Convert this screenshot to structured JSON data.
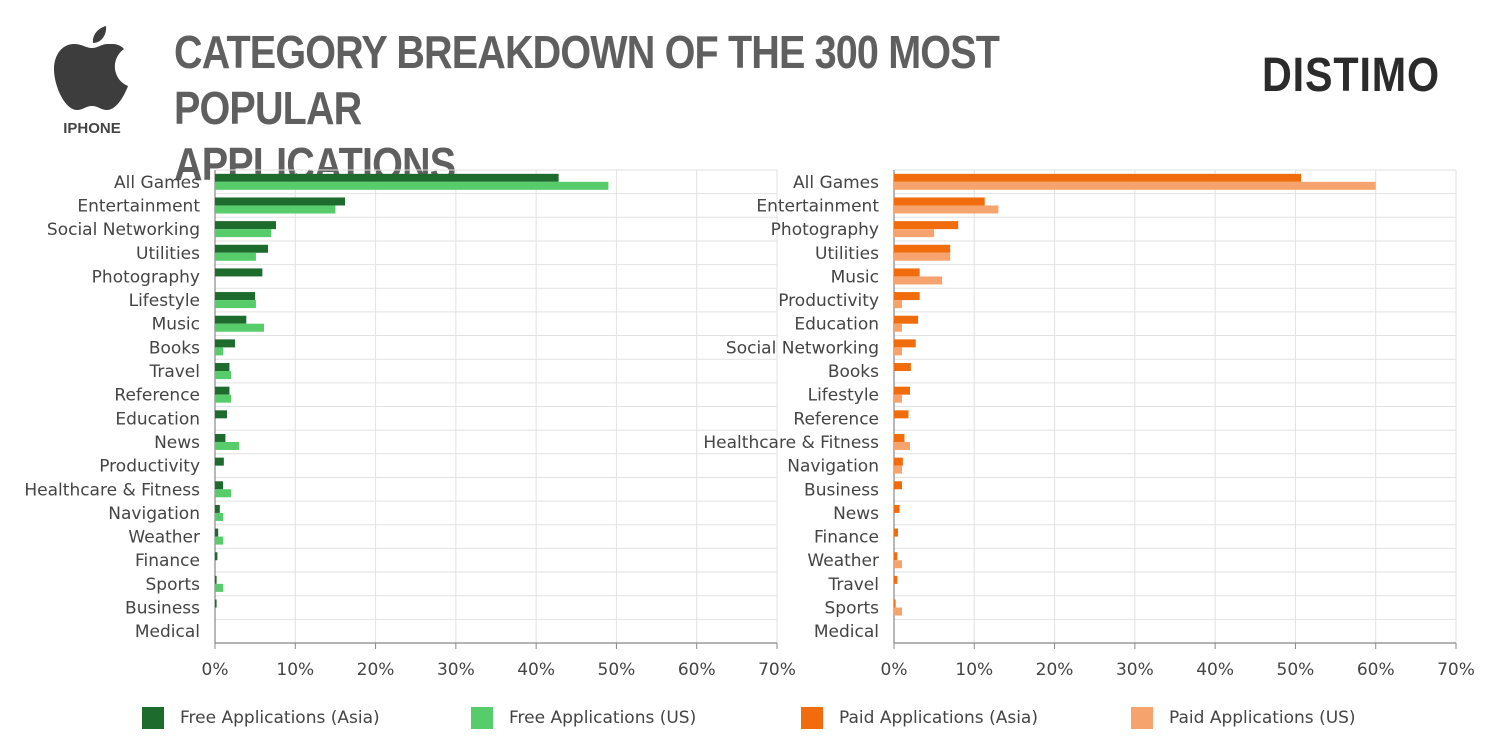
{
  "header": {
    "platform": "IPHONE",
    "title_line1": "CATEGORY BREAKDOWN OF THE 300 MOST POPULAR",
    "title_line2": "APPLICATIONS",
    "brand": "DISTIMO",
    "logo_icon": "apple-icon"
  },
  "colors": {
    "free_asia": "#1e6b2e",
    "free_us": "#56cc6a",
    "paid_asia": "#f06c0c",
    "paid_us": "#f7a36e",
    "grid": "#e2e2e2",
    "axis": "#888888",
    "text": "#444444"
  },
  "legend": [
    {
      "label": "Free Applications (Asia)",
      "color": "#1e6b2e"
    },
    {
      "label": "Free Applications (US)",
      "color": "#56cc6a"
    },
    {
      "label": "Paid Applications (Asia)",
      "color": "#f06c0c"
    },
    {
      "label": "Paid Applications (US)",
      "color": "#f7a36e"
    }
  ],
  "chart_data": [
    {
      "type": "bar",
      "orientation": "horizontal",
      "categories": [
        "All Games",
        "Entertainment",
        "Social Networking",
        "Utilities",
        "Photography",
        "Lifestyle",
        "Music",
        "Books",
        "Travel",
        "Reference",
        "Education",
        "News",
        "Productivity",
        "Healthcare & Fitness",
        "Navigation",
        "Weather",
        "Finance",
        "Sports",
        "Business",
        "Medical"
      ],
      "series": [
        {
          "name": "Free Applications (Asia)",
          "values": [
            42.8,
            16.2,
            7.6,
            6.6,
            5.9,
            5.0,
            3.9,
            2.5,
            1.8,
            1.8,
            1.5,
            1.3,
            1.1,
            1.0,
            0.6,
            0.4,
            0.3,
            0.2,
            0.2,
            0.0
          ]
        },
        {
          "name": "Free Applications (US)",
          "values": [
            49.0,
            15.0,
            7.0,
            5.1,
            0.0,
            5.1,
            6.1,
            1.0,
            2.0,
            2.0,
            0.0,
            3.0,
            0.0,
            2.0,
            1.0,
            1.0,
            0.0,
            1.0,
            0.0,
            0.0
          ]
        }
      ],
      "xlim": [
        0,
        70
      ],
      "xticks": [
        "0%",
        "10%",
        "20%",
        "30%",
        "40%",
        "50%",
        "60%",
        "70%"
      ],
      "grid": true
    },
    {
      "type": "bar",
      "orientation": "horizontal",
      "categories": [
        "All Games",
        "Entertainment",
        "Photography",
        "Utilities",
        "Music",
        "Productivity",
        "Education",
        "Social Networking",
        "Books",
        "Lifestyle",
        "Reference",
        "Healthcare & Fitness",
        "Navigation",
        "Business",
        "News",
        "Finance",
        "Weather",
        "Travel",
        "Sports",
        "Medical"
      ],
      "series": [
        {
          "name": "Paid Applications (Asia)",
          "values": [
            50.7,
            11.3,
            8.0,
            7.0,
            3.2,
            3.2,
            3.0,
            2.7,
            2.1,
            2.0,
            1.8,
            1.3,
            1.1,
            1.0,
            0.7,
            0.5,
            0.4,
            0.4,
            0.2,
            0.0
          ]
        },
        {
          "name": "Paid Applications (US)",
          "values": [
            60.0,
            13.0,
            5.0,
            7.0,
            6.0,
            1.0,
            1.0,
            1.0,
            0.0,
            1.0,
            0.0,
            2.0,
            1.0,
            0.0,
            0.0,
            0.0,
            1.0,
            0.0,
            1.0,
            0.0
          ]
        }
      ],
      "xlim": [
        0,
        70
      ],
      "xticks": [
        "0%",
        "10%",
        "20%",
        "30%",
        "40%",
        "50%",
        "60%",
        "70%"
      ],
      "grid": true
    }
  ]
}
